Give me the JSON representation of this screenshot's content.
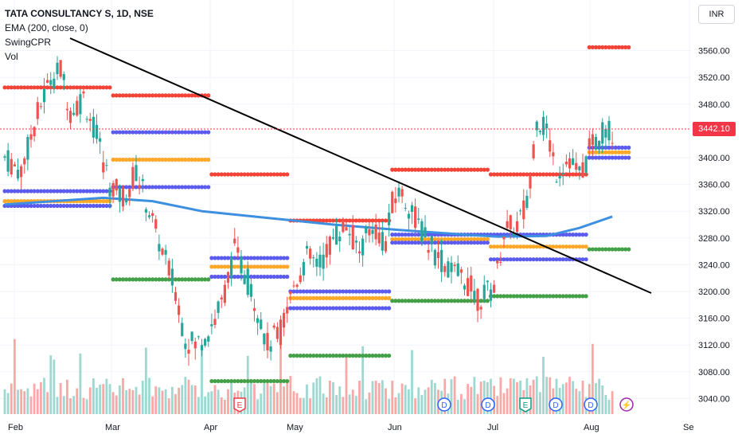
{
  "legend": {
    "title": "TATA CONSULTANCY S, 1D, NSE",
    "ema": "EMA (200, close, 0)",
    "cpr": "SwingCPR",
    "vol": "Vol"
  },
  "currency": "INR",
  "last_price": "3442.10",
  "colors": {
    "up": "#26a69a",
    "down": "#ef5350",
    "ema": "#3d8fe0",
    "red_dots": "#f44336",
    "blue_dots": "#5b5bf0",
    "orange_dots": "#ffa726",
    "green_dots": "#43a047",
    "trendline": "#000000"
  },
  "chart_data": {
    "type": "candlestick",
    "y_axis": {
      "ticks": [
        3040,
        3080,
        3120,
        3160,
        3200,
        3240,
        3280,
        3320,
        3360,
        3400,
        3480,
        3520,
        3560
      ],
      "tick_labels": [
        "3040.00",
        "3080.00",
        "3120.00",
        "3160.00",
        "3200.00",
        "3240.00",
        "3280.00",
        "3320.00",
        "3360.00",
        "3400.00",
        "3480.00",
        "3520.00",
        "3560.00"
      ]
    },
    "x_axis": {
      "ticks": [
        "Feb",
        "Mar",
        "Apr",
        "May",
        "Jun",
        "Jul",
        "Aug",
        "Se"
      ]
    },
    "candles": [],
    "ema": [],
    "cpr_levels": [],
    "events": [
      {
        "label": "E",
        "type": "earnings",
        "month": "Apr"
      },
      {
        "label": "D",
        "type": "dividend",
        "month": "Jun"
      },
      {
        "label": "D",
        "type": "dividend",
        "month": "Jul"
      },
      {
        "label": "E",
        "type": "earnings",
        "month": "Jul"
      },
      {
        "label": "D",
        "type": "dividend",
        "month": "Jul"
      },
      {
        "label": "D",
        "type": "dividend",
        "month": "Aug"
      },
      {
        "label": "⚡",
        "type": "split",
        "month": "Aug"
      }
    ]
  }
}
